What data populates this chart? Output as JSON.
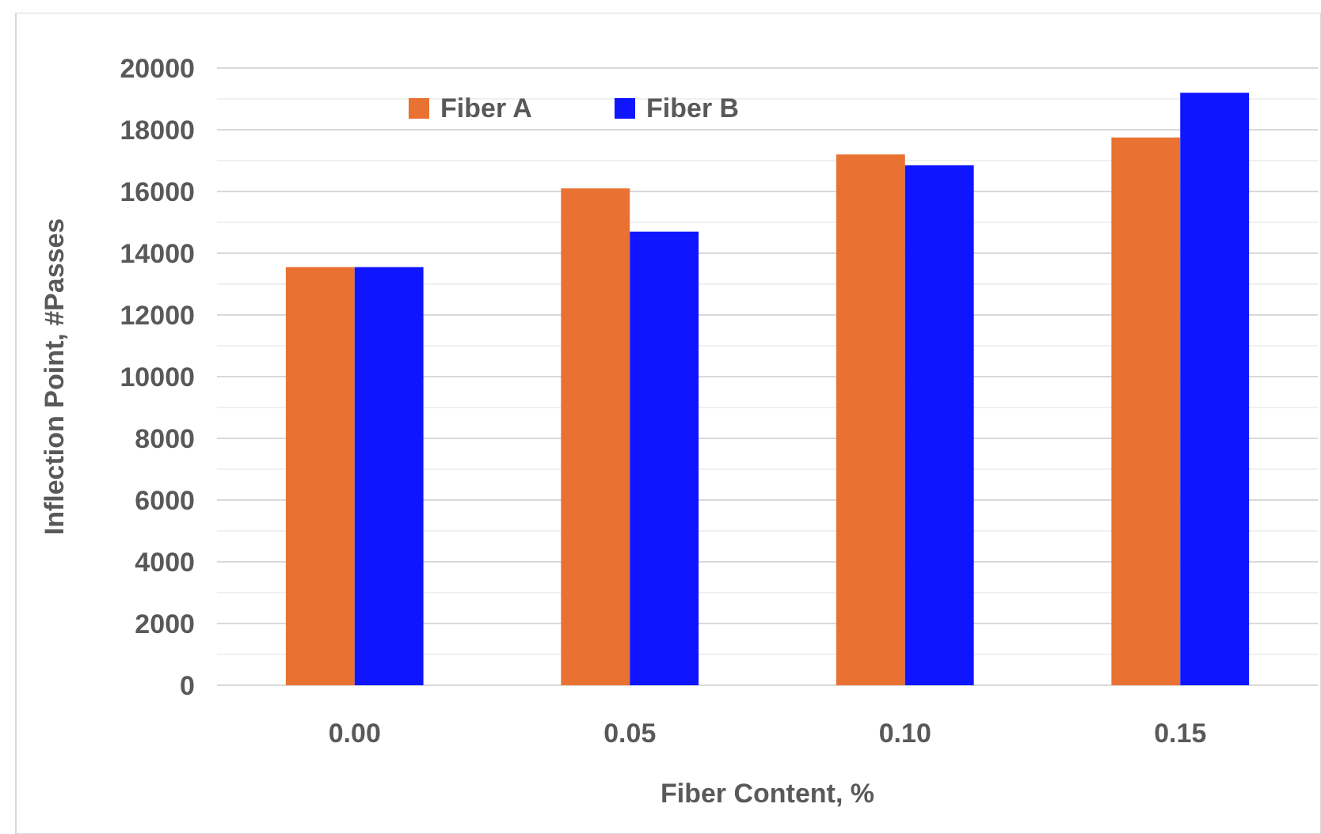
{
  "chart_data": {
    "type": "bar",
    "xlabel": "Fiber Content, %",
    "ylabel": "Inflection Point, #Passes",
    "categories": [
      "0.00",
      "0.05",
      "0.10",
      "0.15"
    ],
    "series": [
      {
        "name": "Fiber A",
        "color": "#e97132",
        "values": [
          13550,
          16100,
          17200,
          17750
        ]
      },
      {
        "name": "Fiber B",
        "color": "#0f16ff",
        "values": [
          13550,
          14700,
          16850,
          19200
        ]
      }
    ],
    "ylim": [
      0,
      20000
    ],
    "yticks": [
      0,
      {
        "value": 1000,
        "label": null
      },
      2000,
      {
        "value": 3000,
        "label": null
      },
      4000,
      {
        "value": 5000,
        "label": null
      },
      6000,
      {
        "value": 7000,
        "label": null
      },
      8000,
      {
        "value": 9000,
        "label": null
      },
      10000,
      {
        "value": 11000,
        "label": null
      },
      12000,
      {
        "value": 13000,
        "label": null
      },
      14000,
      {
        "value": 15000,
        "label": null
      },
      16000,
      {
        "value": 17000,
        "label": null
      },
      18000,
      {
        "value": 19000,
        "label": null
      },
      20000
    ],
    "grid": true,
    "legend": "top left"
  }
}
